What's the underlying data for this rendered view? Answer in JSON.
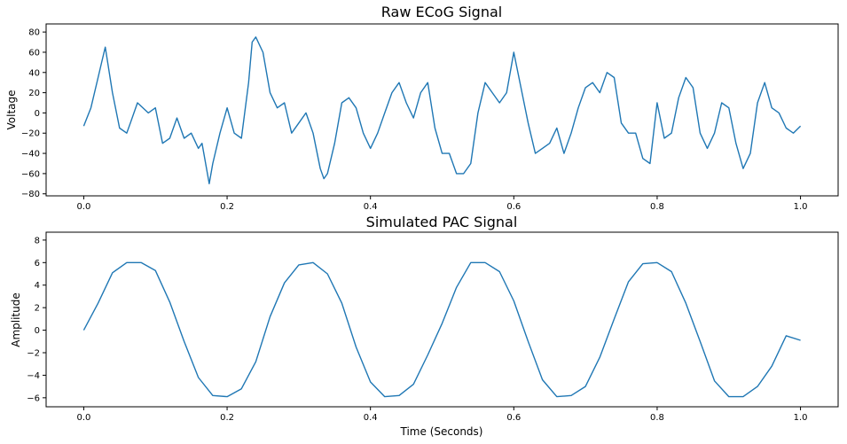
{
  "chart_data": [
    {
      "type": "line",
      "title": "Raw ECoG Signal",
      "xlabel": "",
      "ylabel": "Voltage",
      "xlim": [
        -0.0525,
        1.0525
      ],
      "ylim": [
        -82,
        88
      ],
      "xticks": [
        0.0,
        0.2,
        0.4,
        0.6,
        0.8,
        1.0
      ],
      "xtick_labels": [
        "0.0",
        "0.2",
        "0.4",
        "0.6",
        "0.8",
        "1.0"
      ],
      "yticks": [
        -80,
        -60,
        -40,
        -20,
        0,
        20,
        40,
        60,
        80
      ],
      "ytick_labels": [
        "−80",
        "−60",
        "−40",
        "−20",
        "0",
        "20",
        "40",
        "60",
        "80"
      ],
      "color": "#1f77b4",
      "series": [
        {
          "x": [
            0.0,
            0.01,
            0.02,
            0.025,
            0.03,
            0.04,
            0.05,
            0.06,
            0.065,
            0.075,
            0.09,
            0.1,
            0.11,
            0.12,
            0.13,
            0.14,
            0.15,
            0.16,
            0.165,
            0.175,
            0.18,
            0.19,
            0.2,
            0.21,
            0.22,
            0.23,
            0.235,
            0.24,
            0.25,
            0.26,
            0.27,
            0.28,
            0.29,
            0.3,
            0.31,
            0.32,
            0.33,
            0.335,
            0.34,
            0.35,
            0.36,
            0.37,
            0.38,
            0.39,
            0.4,
            0.41,
            0.42,
            0.43,
            0.44,
            0.45,
            0.46,
            0.47,
            0.48,
            0.49,
            0.5,
            0.51,
            0.52,
            0.53,
            0.54,
            0.55,
            0.56,
            0.57,
            0.58,
            0.59,
            0.6,
            0.61,
            0.62,
            0.63,
            0.64,
            0.65,
            0.66,
            0.67,
            0.68,
            0.69,
            0.7,
            0.71,
            0.72,
            0.73,
            0.74,
            0.75,
            0.76,
            0.77,
            0.78,
            0.79,
            0.8,
            0.81,
            0.82,
            0.83,
            0.84,
            0.85,
            0.86,
            0.87,
            0.88,
            0.89,
            0.9,
            0.91,
            0.92,
            0.93,
            0.94,
            0.95,
            0.96,
            0.97,
            0.98,
            0.99,
            1.0
          ],
          "values": [
            -13,
            5,
            35,
            50,
            65,
            20,
            -15,
            -20,
            -10,
            10,
            0,
            5,
            -30,
            -25,
            -5,
            -25,
            -20,
            -35,
            -30,
            -70,
            -50,
            -20,
            5,
            -20,
            -25,
            30,
            70,
            75,
            60,
            20,
            5,
            10,
            -20,
            -10,
            0,
            -20,
            -55,
            -65,
            -60,
            -30,
            10,
            15,
            5,
            -20,
            -35,
            -20,
            0,
            20,
            30,
            10,
            -5,
            20,
            30,
            -15,
            -40,
            -40,
            -60,
            -60,
            -50,
            0,
            30,
            20,
            10,
            20,
            60,
            25,
            -10,
            -40,
            -35,
            -30,
            -15,
            -40,
            -20,
            5,
            25,
            30,
            20,
            40,
            35,
            -10,
            -20,
            -20,
            -45,
            -50,
            10,
            -25,
            -20,
            15,
            35,
            25,
            -20,
            -35,
            -20,
            10,
            5,
            -30,
            -55,
            -40,
            10,
            30,
            5,
            0,
            -15,
            -20,
            -13
          ]
        }
      ]
    },
    {
      "type": "line",
      "title": "Simulated PAC Signal",
      "xlabel": "Time (Seconds)",
      "ylabel": "Amplitude",
      "xlim": [
        -0.0525,
        1.0525
      ],
      "ylim": [
        -6.8,
        8.7
      ],
      "xticks": [
        0.0,
        0.2,
        0.4,
        0.6,
        0.8,
        1.0
      ],
      "xtick_labels": [
        "0.0",
        "0.2",
        "0.4",
        "0.6",
        "0.8",
        "1.0"
      ],
      "yticks": [
        -6,
        -4,
        -2,
        0,
        2,
        4,
        6,
        8
      ],
      "ytick_labels": [
        "−6",
        "−4",
        "−2",
        "0",
        "2",
        "4",
        "6",
        "8"
      ],
      "color": "#1f77b4",
      "series": [
        {
          "x": [
            0.0,
            0.02,
            0.04,
            0.06,
            0.08,
            0.1,
            0.12,
            0.14,
            0.16,
            0.18,
            0.2,
            0.22,
            0.24,
            0.26,
            0.28,
            0.3,
            0.32,
            0.34,
            0.36,
            0.38,
            0.4,
            0.42,
            0.44,
            0.46,
            0.48,
            0.5,
            0.52,
            0.54,
            0.56,
            0.58,
            0.6,
            0.62,
            0.64,
            0.66,
            0.68,
            0.7,
            0.72,
            0.74,
            0.76,
            0.78,
            0.8,
            0.82,
            0.84,
            0.86,
            0.88,
            0.9,
            0.92,
            0.94,
            0.96,
            0.98,
            1.0
          ],
          "values": [
            0.0,
            2.4,
            5.1,
            6.0,
            6.0,
            5.3,
            2.5,
            -1.0,
            -4.2,
            -5.8,
            -5.9,
            -5.2,
            -2.8,
            1.2,
            4.2,
            5.8,
            6.0,
            5.0,
            2.4,
            -1.5,
            -4.6,
            -5.9,
            -5.8,
            -4.8,
            -2.2,
            0.6,
            3.8,
            6.0,
            6.0,
            5.2,
            2.6,
            -1.0,
            -4.4,
            -5.9,
            -5.8,
            -5.0,
            -2.4,
            1.0,
            4.3,
            5.9,
            6.0,
            5.2,
            2.4,
            -1.0,
            -4.5,
            -5.9,
            -5.9,
            -5.0,
            -3.2,
            -0.5,
            -0.9
          ]
        }
      ]
    }
  ]
}
